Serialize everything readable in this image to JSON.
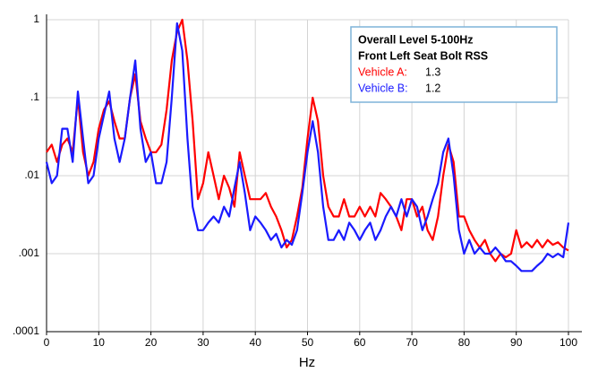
{
  "chart_data": {
    "type": "line",
    "xlabel": "Hz",
    "legend_title": [
      "Overall Level 5-100Hz",
      "Front Left Seat Bolt RSS"
    ],
    "x": [
      0,
      1,
      2,
      3,
      4,
      5,
      6,
      7,
      8,
      9,
      10,
      11,
      12,
      13,
      14,
      15,
      16,
      17,
      18,
      19,
      20,
      21,
      22,
      23,
      24,
      25,
      26,
      27,
      28,
      29,
      30,
      31,
      32,
      33,
      34,
      35,
      36,
      37,
      38,
      39,
      40,
      41,
      42,
      43,
      44,
      45,
      46,
      47,
      48,
      49,
      50,
      51,
      52,
      53,
      54,
      55,
      56,
      57,
      58,
      59,
      60,
      61,
      62,
      63,
      64,
      65,
      66,
      67,
      68,
      69,
      70,
      71,
      72,
      73,
      74,
      75,
      76,
      77,
      78,
      79,
      80,
      81,
      82,
      83,
      84,
      85,
      86,
      87,
      88,
      89,
      90,
      91,
      92,
      93,
      94,
      95,
      96,
      97,
      98,
      99,
      100
    ],
    "series": [
      {
        "name": "Vehicle A:",
        "overall_level": 1.3,
        "color": "#ff0000",
        "values": [
          0.02,
          0.025,
          0.015,
          0.025,
          0.03,
          0.02,
          0.1,
          0.02,
          0.01,
          0.015,
          0.04,
          0.07,
          0.09,
          0.05,
          0.03,
          0.03,
          0.1,
          0.2,
          0.05,
          0.03,
          0.02,
          0.02,
          0.025,
          0.07,
          0.3,
          0.7,
          1,
          0.3,
          0.05,
          0.005,
          0.008,
          0.02,
          0.01,
          0.005,
          0.01,
          0.007,
          0.004,
          0.02,
          0.01,
          0.005,
          0.005,
          0.005,
          0.006,
          0.004,
          0.003,
          0.002,
          0.0012,
          0.0015,
          0.003,
          0.007,
          0.03,
          0.1,
          0.05,
          0.01,
          0.004,
          0.003,
          0.003,
          0.005,
          0.003,
          0.003,
          0.004,
          0.003,
          0.004,
          0.003,
          0.006,
          0.005,
          0.004,
          0.003,
          0.002,
          0.005,
          0.005,
          0.003,
          0.004,
          0.002,
          0.0015,
          0.003,
          0.01,
          0.025,
          0.015,
          0.003,
          0.003,
          0.002,
          0.0015,
          0.0012,
          0.0015,
          0.001,
          0.0008,
          0.001,
          0.0009,
          0.001,
          0.002,
          0.0012,
          0.0014,
          0.0012,
          0.0015,
          0.0012,
          0.0015,
          0.0013,
          0.0014,
          0.0012,
          0.0011
        ]
      },
      {
        "name": "Vehicle B:",
        "overall_level": 1.2,
        "color": "#1a1aff",
        "values": [
          0.015,
          0.008,
          0.01,
          0.04,
          0.04,
          0.015,
          0.12,
          0.03,
          0.008,
          0.01,
          0.03,
          0.06,
          0.12,
          0.03,
          0.015,
          0.03,
          0.1,
          0.3,
          0.04,
          0.015,
          0.02,
          0.008,
          0.008,
          0.015,
          0.1,
          0.9,
          0.4,
          0.03,
          0.004,
          0.002,
          0.002,
          0.0025,
          0.003,
          0.0025,
          0.004,
          0.003,
          0.007,
          0.015,
          0.006,
          0.002,
          0.003,
          0.0025,
          0.002,
          0.0015,
          0.0018,
          0.0012,
          0.0015,
          0.0013,
          0.002,
          0.006,
          0.02,
          0.05,
          0.02,
          0.004,
          0.0015,
          0.0015,
          0.002,
          0.0015,
          0.0025,
          0.002,
          0.0015,
          0.002,
          0.0025,
          0.0015,
          0.002,
          0.003,
          0.004,
          0.003,
          0.005,
          0.003,
          0.005,
          0.004,
          0.002,
          0.003,
          0.005,
          0.008,
          0.02,
          0.03,
          0.01,
          0.002,
          0.001,
          0.0015,
          0.001,
          0.0012,
          0.001,
          0.001,
          0.0012,
          0.001,
          0.0008,
          0.0008,
          0.0007,
          0.0006,
          0.0006,
          0.0006,
          0.0007,
          0.0008,
          0.001,
          0.0009,
          0.001,
          0.0009,
          0.0025
        ]
      }
    ],
    "xlim": [
      0,
      100
    ],
    "xticks": [
      0,
      10,
      20,
      30,
      40,
      50,
      60,
      70,
      80,
      90,
      100
    ],
    "ylim": [
      0.0001,
      1
    ],
    "log_y": true,
    "yticks": [
      1,
      {
        "value": 0.1,
        "label": ".1"
      },
      {
        "value": 0.01,
        "label": ".01"
      },
      {
        "value": 0.001,
        "label": ".001"
      },
      {
        "value": 0.0001,
        "label": ".0001"
      }
    ],
    "grid": true
  }
}
